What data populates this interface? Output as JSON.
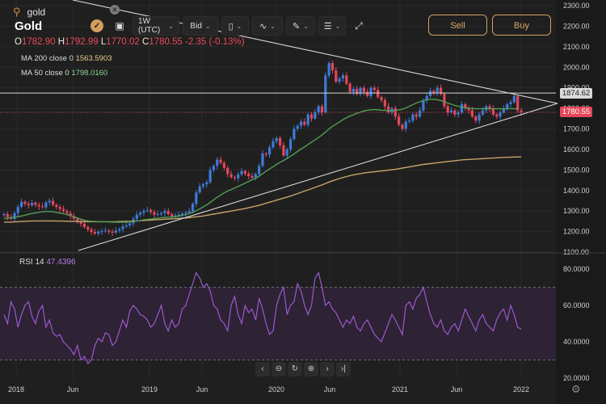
{
  "search": {
    "query": "gold",
    "search_icon": "search-icon",
    "clear_icon": "close-icon"
  },
  "instrument": {
    "name": "Gold"
  },
  "toolbar": {
    "interval": "1W (UTC)",
    "price_type": "Bid",
    "items": [
      "check-icon",
      "chart-settings-icon",
      "interval-select",
      "price-type-select",
      "candlestick-icon",
      "indicators-icon",
      "drawing-icon",
      "layers-icon",
      "fullscreen-icon"
    ]
  },
  "ohlc": {
    "o_label": "O",
    "o": "1782.90",
    "h_label": "H",
    "h": "1792.99",
    "l_label": "L",
    "l": "1770.02",
    "c_label": "C",
    "c": "1780.55",
    "change": "-2.35 (-0.13%)"
  },
  "indicators": {
    "ma200": {
      "label": "MA 200 close 0",
      "value": "1563.5903",
      "color": "#c8a56a"
    },
    "ma50": {
      "label": "MA 50 close 0",
      "value": "1798.0160",
      "color": "#4f9e56"
    },
    "rsi": {
      "label": "RSI 14",
      "value": "47.4396",
      "color": "#9b59d0"
    }
  },
  "trade": {
    "sell": "Sell",
    "buy": "Buy"
  },
  "price_axis": {
    "ticks": [
      "2300.00",
      "2200.00",
      "2100.00",
      "2000.00",
      "1900.00",
      "1800.00",
      "1700.00",
      "1600.00",
      "1500.00",
      "1400.00",
      "1300.00",
      "1200.00",
      "1100.00"
    ]
  },
  "rsi_axis": {
    "ticks": [
      "80.0000",
      "60.0000",
      "40.0000",
      "20.0000"
    ]
  },
  "time_axis": {
    "ticks": [
      "2018",
      "Jun",
      "2019",
      "Jun",
      "2020",
      "Jun",
      "2021",
      "Jun",
      "2022"
    ]
  },
  "price_tags": {
    "line": "1874.62",
    "last": "1780.55"
  },
  "navigation": [
    "chevron-left-icon",
    "zoom-out-icon",
    "reset-icon",
    "zoom-in-icon",
    "chevron-right-icon",
    "chevron-end-icon"
  ],
  "colors": {
    "up": "#3d7bd9",
    "down": "#e5475b",
    "accent": "#d1a063",
    "background": "#1f1f1f"
  },
  "chart_data": {
    "type": "candlestick",
    "timeframe": "1W",
    "price_range": [
      1100,
      2300
    ],
    "rsi_range": [
      20,
      88
    ],
    "rsi_bands": [
      30,
      70
    ],
    "horizontal_line": 1874.62,
    "last_price": 1780.55,
    "closes": [
      1285,
      1270,
      1262,
      1290,
      1320,
      1345,
      1335,
      1328,
      1340,
      1330,
      1322,
      1318,
      1342,
      1350,
      1330,
      1320,
      1310,
      1300,
      1290,
      1275,
      1262,
      1250,
      1238,
      1222,
      1210,
      1198,
      1190,
      1200,
      1203,
      1205,
      1200,
      1195,
      1205,
      1212,
      1225,
      1230,
      1240,
      1262,
      1282,
      1292,
      1300,
      1305,
      1295,
      1282,
      1285,
      1290,
      1300,
      1285,
      1275,
      1278,
      1282,
      1288,
      1292,
      1300,
      1335,
      1390,
      1420,
      1430,
      1440,
      1500,
      1520,
      1550,
      1535,
      1510,
      1480,
      1465,
      1460,
      1478,
      1495,
      1482,
      1470,
      1462,
      1480,
      1520,
      1580,
      1575,
      1610,
      1640,
      1655,
      1620,
      1570,
      1600,
      1650,
      1700,
      1715,
      1735,
      1720,
      1770,
      1750,
      1780,
      1810,
      1780,
      1960,
      2020,
      1985,
      1930,
      1945,
      1960,
      1920,
      1880,
      1895,
      1870,
      1900,
      1880,
      1860,
      1900,
      1890,
      1855,
      1840,
      1810,
      1780,
      1800,
      1760,
      1720,
      1700,
      1735,
      1740,
      1770,
      1760,
      1790,
      1840,
      1860,
      1885,
      1875,
      1900,
      1870,
      1810,
      1780,
      1790,
      1770,
      1780,
      1820,
      1800,
      1790,
      1760,
      1740,
      1770,
      1790,
      1810,
      1800,
      1770,
      1760,
      1780,
      1800,
      1820,
      1830,
      1860,
      1790,
      1780
    ],
    "ma50": [
      1262,
      1265,
      1268,
      1270,
      1272,
      1276,
      1280,
      1284,
      1288,
      1291,
      1294,
      1296,
      1298,
      1298,
      1296,
      1293,
      1290,
      1287,
      1283,
      1278,
      1272,
      1266,
      1260,
      1255,
      1252,
      1250,
      1249,
      1248,
      1248,
      1248,
      1247,
      1246,
      1246,
      1245,
      1245,
      1246,
      1247,
      1249,
      1251,
      1254,
      1257,
      1259,
      1261,
      1263,
      1265,
      1267,
      1269,
      1270,
      1271,
      1273,
      1276,
      1279,
      1283,
      1288,
      1294,
      1302,
      1311,
      1320,
      1330,
      1342,
      1355,
      1367,
      1378,
      1388,
      1397,
      1405,
      1412,
      1420,
      1428,
      1436,
      1444,
      1452,
      1460,
      1470,
      1482,
      1494,
      1505,
      1516,
      1527,
      1537,
      1546,
      1556,
      1567,
      1578,
      1590,
      1602,
      1612,
      1624,
      1635,
      1646,
      1658,
      1670,
      1684,
      1700,
      1712,
      1723,
      1734,
      1745,
      1754,
      1762,
      1769,
      1776,
      1782,
      1787,
      1791,
      1793,
      1794,
      1793,
      1791,
      1790,
      1788,
      1789,
      1790,
      1792,
      1796,
      1802,
      1810,
      1818,
      1826,
      1832,
      1838,
      1842,
      1844,
      1844,
      1842,
      1838,
      1832,
      1826,
      1820,
      1814,
      1810,
      1806,
      1803,
      1800,
      1799,
      1798,
      1798,
      1798,
      1798,
      1798,
      1798,
      1798,
      1798,
      1798,
      1798,
      1798,
      1798,
      1798
    ],
    "ma200": [
      1245,
      1246,
      1246,
      1247,
      1248,
      1249,
      1250,
      1251,
      1251,
      1252,
      1252,
      1252,
      1252,
      1252,
      1252,
      1251,
      1251,
      1251,
      1250,
      1250,
      1250,
      1249,
      1249,
      1248,
      1248,
      1248,
      1248,
      1248,
      1248,
      1248,
      1248,
      1248,
      1248,
      1249,
      1249,
      1250,
      1250,
      1251,
      1252,
      1253,
      1254,
      1255,
      1256,
      1257,
      1258,
      1259,
      1260,
      1261,
      1262,
      1263,
      1264,
      1265,
      1266,
      1268,
      1270,
      1272,
      1274,
      1276,
      1279,
      1282,
      1285,
      1288,
      1291,
      1294,
      1297,
      1300,
      1303,
      1306,
      1309,
      1312,
      1316,
      1320,
      1324,
      1328,
      1333,
      1338,
      1343,
      1348,
      1353,
      1358,
      1363,
      1368,
      1373,
      1379,
      1385,
      1391,
      1397,
      1403,
      1409,
      1415,
      1421,
      1427,
      1434,
      1441,
      1447,
      1453,
      1458,
      1463,
      1468,
      1472,
      1476,
      1479,
      1482,
      1485,
      1487,
      1489,
      1491,
      1493,
      1495,
      1497,
      1499,
      1501,
      1503,
      1506,
      1509,
      1512,
      1515,
      1518,
      1521,
      1524,
      1527,
      1529,
      1531,
      1533,
      1535,
      1537,
      1539,
      1541,
      1543,
      1545,
      1547,
      1549,
      1550,
      1551,
      1552,
      1553,
      1554,
      1555,
      1556,
      1557,
      1558,
      1559,
      1560,
      1561,
      1562,
      1562,
      1563,
      1563,
      1564
    ],
    "rsi": [
      55,
      50,
      62,
      58,
      48,
      55,
      60,
      62,
      54,
      50,
      57,
      60,
      48,
      52,
      45,
      43,
      44,
      40,
      38,
      36,
      33,
      38,
      30,
      32,
      28,
      30,
      38,
      42,
      40,
      45,
      44,
      38,
      40,
      46,
      52,
      48,
      57,
      60,
      58,
      55,
      54,
      52,
      48,
      50,
      55,
      60,
      50,
      46,
      52,
      48,
      50,
      58,
      60,
      66,
      72,
      78,
      75,
      70,
      72,
      68,
      60,
      58,
      52,
      50,
      46,
      60,
      65,
      55,
      50,
      60,
      56,
      58,
      52,
      64,
      58,
      50,
      44,
      46,
      60,
      66,
      70,
      55,
      60,
      62,
      72,
      68,
      60,
      55,
      60,
      75,
      78,
      70,
      60,
      62,
      58,
      56,
      52,
      48,
      52,
      50,
      54,
      48,
      46,
      50,
      52,
      48,
      44,
      42,
      40,
      45,
      50,
      55,
      52,
      48,
      44,
      60,
      62,
      58,
      64,
      66,
      70,
      62,
      55,
      50,
      48,
      52,
      46,
      44,
      48,
      50,
      46,
      52,
      58,
      54,
      50,
      46,
      52,
      55,
      50,
      48,
      46,
      52,
      56,
      58,
      52,
      60,
      55,
      48,
      47
    ]
  }
}
